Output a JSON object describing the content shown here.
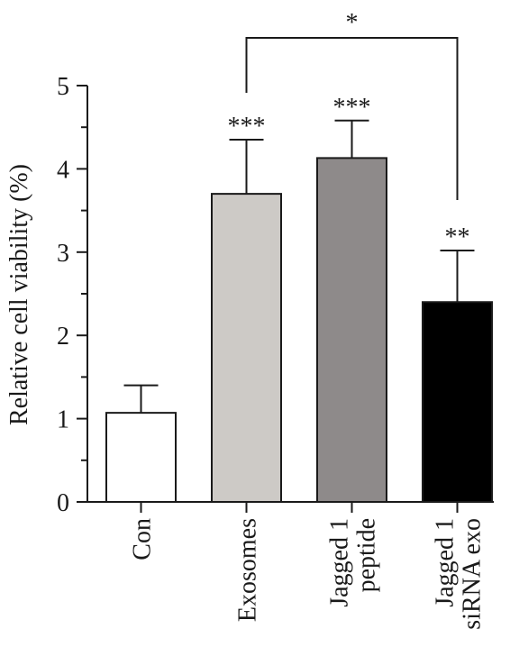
{
  "chart_data": {
    "type": "bar",
    "title": "",
    "xlabel": "",
    "ylabel": "Relative cell viability (%)",
    "ylim": [
      0,
      5
    ],
    "yticks": [
      0,
      1,
      2,
      3,
      4,
      5
    ],
    "grid": false,
    "categories": [
      {
        "lines": [
          "Con"
        ]
      },
      {
        "lines": [
          "Exosomes"
        ]
      },
      {
        "lines": [
          "Jagged 1",
          "peptide"
        ]
      },
      {
        "lines": [
          "Jagged 1",
          "siRNA exo"
        ]
      }
    ],
    "values": [
      1.07,
      3.7,
      4.13,
      2.4
    ],
    "errors": [
      0.33,
      0.65,
      0.45,
      0.62
    ],
    "bar_colors": [
      "#ffffff",
      "#cdcac6",
      "#8e8a8a",
      "#000000"
    ],
    "significance": [
      "",
      "***",
      "***",
      "**"
    ],
    "comparison": {
      "from": 1,
      "to": 3,
      "label": "*"
    }
  }
}
